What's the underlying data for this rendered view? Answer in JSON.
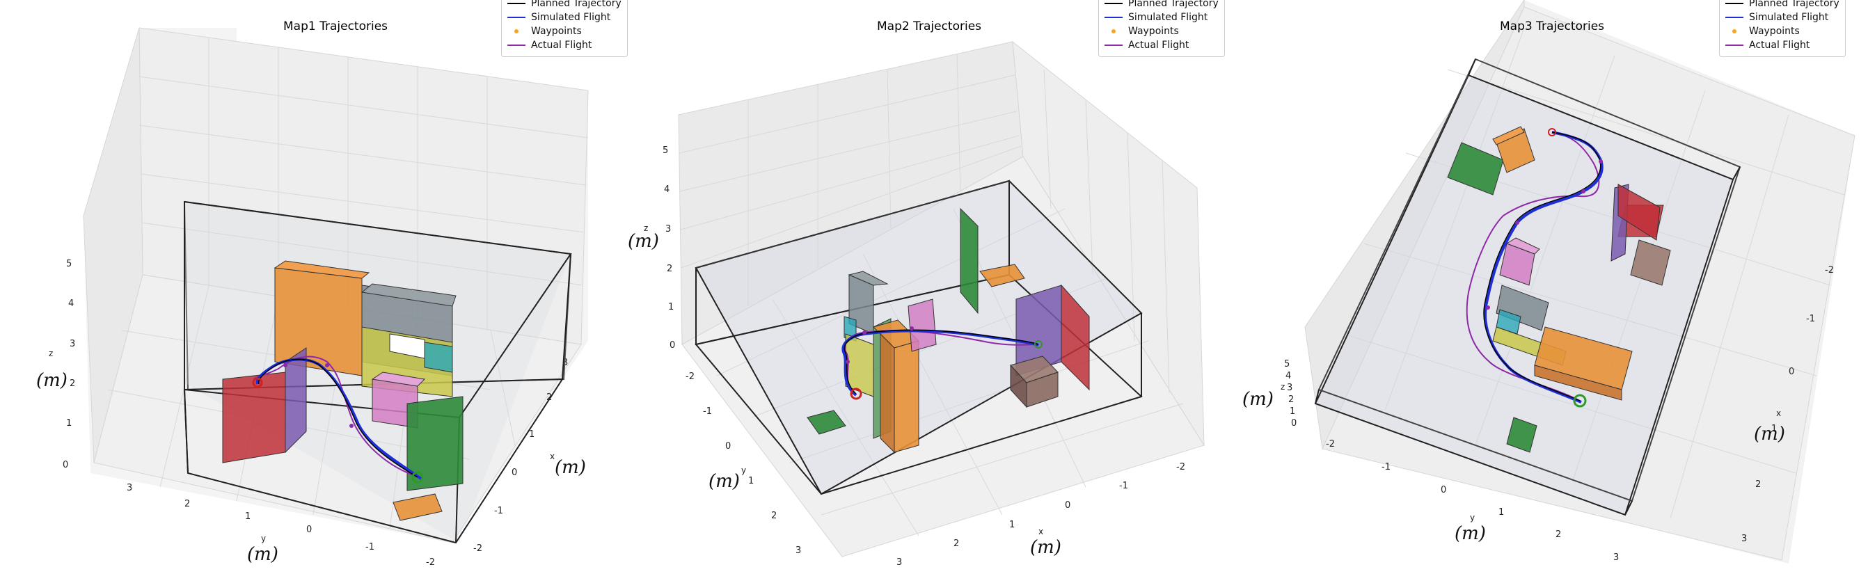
{
  "legend": {
    "items": [
      {
        "label": "Planned Trajectory",
        "kind": "line",
        "color": "#000000"
      },
      {
        "label": "Simulated Flight",
        "kind": "line",
        "color": "#1f2fd6"
      },
      {
        "label": "Waypoints",
        "kind": "dot",
        "color": "#f5a623"
      },
      {
        "label": "Actual Flight",
        "kind": "line",
        "color": "#8e2aa8"
      }
    ]
  },
  "annotations": {
    "unit": "(m)"
  },
  "chart_data": [
    {
      "type": "line3d",
      "title": "Map1 Trajectories",
      "xlabel": "x",
      "ylabel": "y",
      "zlabel": "z",
      "x_ticks": [
        "-2",
        "-1",
        "0",
        "1",
        "2",
        "3"
      ],
      "y_ticks": [
        "3",
        "2",
        "1",
        "0",
        "-1",
        "-2"
      ],
      "z_ticks": [
        "0",
        "1",
        "2",
        "3",
        "4",
        "5"
      ],
      "grid": true,
      "legend_position": "top-right",
      "series": [
        {
          "name": "Planned Trajectory",
          "color": "#000000"
        },
        {
          "name": "Simulated Flight",
          "color": "#1f2fd6"
        },
        {
          "name": "Waypoints",
          "color": "#f5a623"
        },
        {
          "name": "Actual Flight",
          "color": "#8e2aa8"
        }
      ]
    },
    {
      "type": "line3d",
      "title": "Map2 Trajectories",
      "xlabel": "x",
      "ylabel": "y",
      "zlabel": "z",
      "x_ticks": [
        "3",
        "2",
        "1",
        "0",
        "-1",
        "-2"
      ],
      "y_ticks": [
        "-2",
        "-1",
        "0",
        "1",
        "2",
        "3"
      ],
      "z_ticks": [
        "0",
        "1",
        "2",
        "3",
        "4",
        "5"
      ],
      "grid": true,
      "legend_position": "top-right",
      "series": [
        {
          "name": "Planned Trajectory",
          "color": "#000000"
        },
        {
          "name": "Simulated Flight",
          "color": "#1f2fd6"
        },
        {
          "name": "Waypoints",
          "color": "#f5a623"
        },
        {
          "name": "Actual Flight",
          "color": "#8e2aa8"
        }
      ]
    },
    {
      "type": "line3d",
      "title": "Map3 Trajectories",
      "xlabel": "x",
      "ylabel": "y",
      "zlabel": "z",
      "x_ticks": [
        "-2",
        "-1",
        "0",
        "1",
        "2",
        "3"
      ],
      "y_ticks": [
        "-2",
        "-1",
        "0",
        "1",
        "2",
        "3"
      ],
      "z_ticks": [
        "0",
        "1",
        "2",
        "3",
        "4",
        "5"
      ],
      "grid": true,
      "legend_position": "top-right",
      "series": [
        {
          "name": "Planned Trajectory",
          "color": "#000000"
        },
        {
          "name": "Simulated Flight",
          "color": "#1f2fd6"
        },
        {
          "name": "Waypoints",
          "color": "#f5a623"
        },
        {
          "name": "Actual Flight",
          "color": "#8e2aa8"
        }
      ]
    }
  ]
}
